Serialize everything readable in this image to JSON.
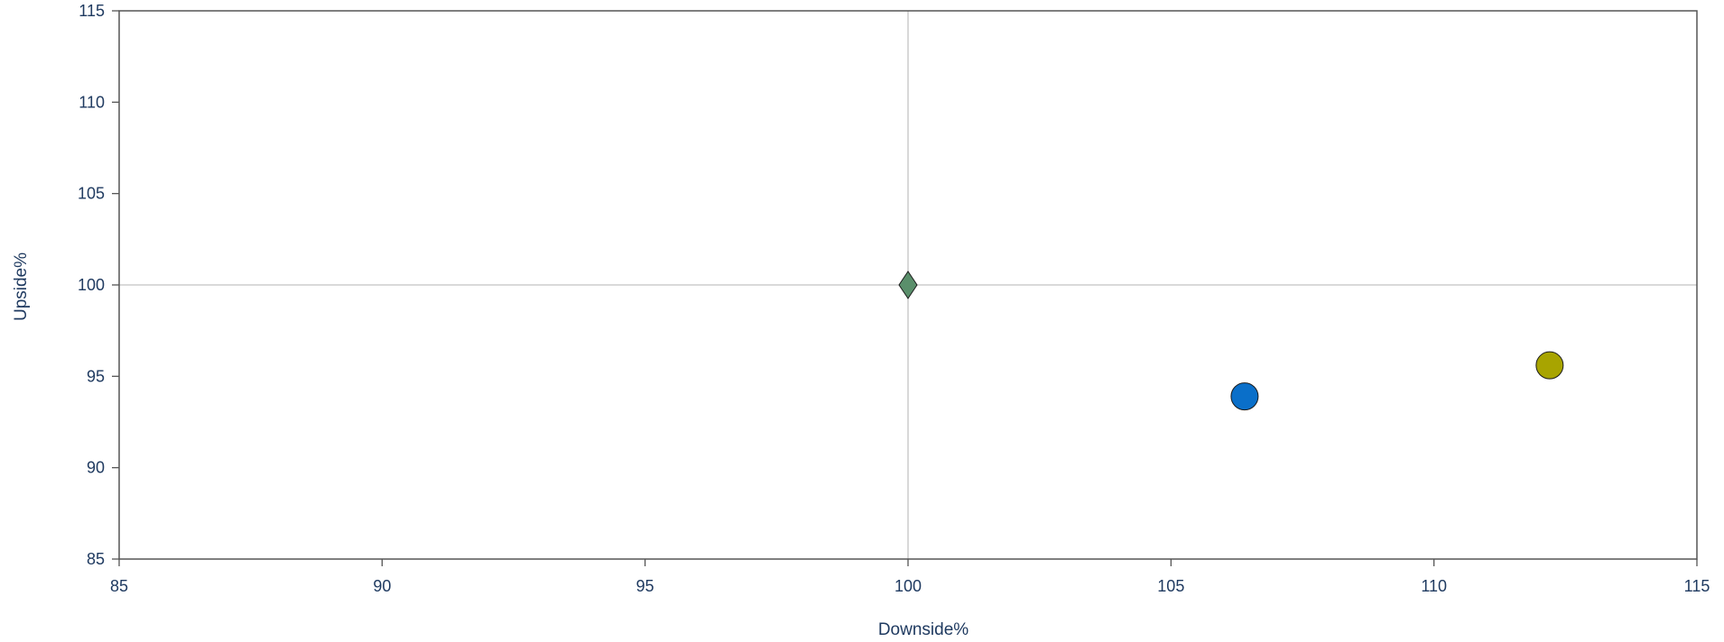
{
  "chart_data": {
    "type": "scatter",
    "title": "",
    "xlabel": "Downside%",
    "ylabel": "Upside%",
    "xlim": [
      85,
      115
    ],
    "ylim": [
      85,
      115
    ],
    "x_ticks": [
      "85",
      "90",
      "95",
      "100",
      "105",
      "110",
      "115"
    ],
    "y_ticks": [
      "85",
      "90",
      "95",
      "100",
      "105",
      "110",
      "115"
    ],
    "reference_lines": {
      "x": 100,
      "y": 100
    },
    "grid": false,
    "legend": "none",
    "points": [
      {
        "x": 100.0,
        "y": 100.0,
        "marker": "diamond",
        "color": "#5a8f6b"
      },
      {
        "x": 106.4,
        "y": 93.9,
        "marker": "circle",
        "color": "#0a6fc9"
      },
      {
        "x": 112.2,
        "y": 95.6,
        "marker": "circle",
        "color": "#a8a400"
      }
    ]
  }
}
